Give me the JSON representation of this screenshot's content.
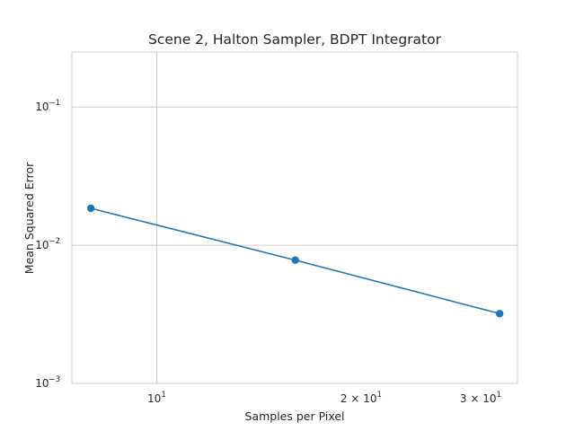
{
  "chart_data": {
    "type": "line",
    "title": "Scene 2, Halton Sampler, BDPT Integrator",
    "xlabel": "Samples per Pixel",
    "ylabel": "Mean Squared Error",
    "xscale": "log",
    "yscale": "log",
    "xlim": [
      7.5,
      34
    ],
    "ylim": [
      0.001,
      0.25
    ],
    "grid": true,
    "x_ticks": [
      {
        "value": 10,
        "base": "10",
        "exp": "1"
      },
      {
        "value": 20,
        "base": "2 × 10",
        "exp": "1"
      },
      {
        "value": 30,
        "base": "3 × 10",
        "exp": "1"
      }
    ],
    "y_ticks": [
      {
        "value": 0.1,
        "base": "10",
        "exp": "−1"
      },
      {
        "value": 0.01,
        "base": "10",
        "exp": "−2"
      },
      {
        "value": 0.001,
        "base": "10",
        "exp": "−3"
      }
    ],
    "series": [
      {
        "color": "#1f77b4",
        "x": [
          8,
          16,
          32
        ],
        "y": [
          0.0185,
          0.0078,
          0.0032
        ]
      }
    ]
  }
}
